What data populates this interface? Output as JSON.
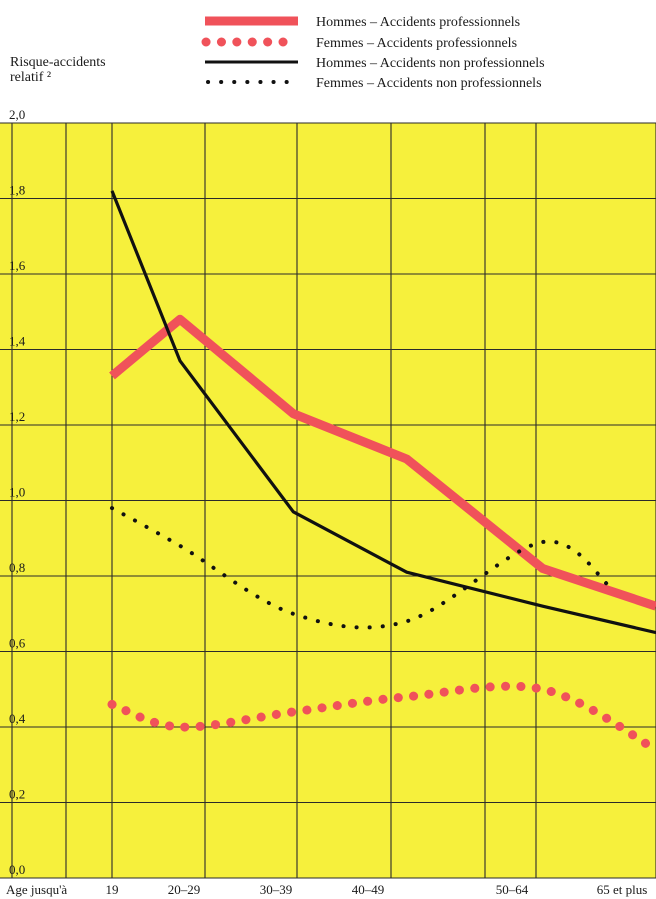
{
  "chart_data": {
    "type": "line",
    "title": "",
    "ylabel_line1": "Risque-accidents",
    "ylabel_line2": "relatif ²",
    "xlabel_prefix": "Age jusqu'à",
    "categories": [
      "19",
      "20–29",
      "30–39",
      "40–49",
      "50–64",
      "65 et plus"
    ],
    "x": [
      19,
      25,
      35,
      45,
      57,
      67
    ],
    "ylim": [
      0,
      2.0
    ],
    "xlim": [
      12.5,
      67
    ],
    "yticks": [
      "0,0",
      "0,2",
      "0,4",
      "0,6",
      "0,8",
      "1,0",
      "1,2",
      "1,4",
      "1,6",
      "1,8",
      "2,0"
    ],
    "grid": true,
    "legend_position": "top-right",
    "colors": {
      "background": "#f6f03c",
      "grid": "#2a2a2a",
      "red": "#f0525a",
      "black": "#111111"
    },
    "series": [
      {
        "name": "Hommes – Accidents professionnels",
        "x": [
          19,
          25,
          35,
          45,
          57,
          67
        ],
        "values": [
          1.33,
          1.48,
          1.23,
          1.11,
          0.82,
          0.72
        ]
      },
      {
        "name": "Femmes – Accidents professionnels",
        "x": [
          19,
          25,
          35,
          45,
          57,
          67
        ],
        "values": [
          0.46,
          0.4,
          0.44,
          0.48,
          0.5,
          0.34
        ]
      },
      {
        "name": "Hommes – Accidents non professionnels",
        "x": [
          19,
          25,
          35,
          45,
          57,
          67
        ],
        "values": [
          1.82,
          1.37,
          0.97,
          0.81,
          0.72,
          0.65
        ]
      },
      {
        "name": "Femmes – Accidents non professionnels",
        "x": [
          19,
          25,
          35,
          45,
          57,
          63
        ],
        "values": [
          0.98,
          0.88,
          0.7,
          0.68,
          0.89,
          0.77
        ]
      }
    ]
  }
}
